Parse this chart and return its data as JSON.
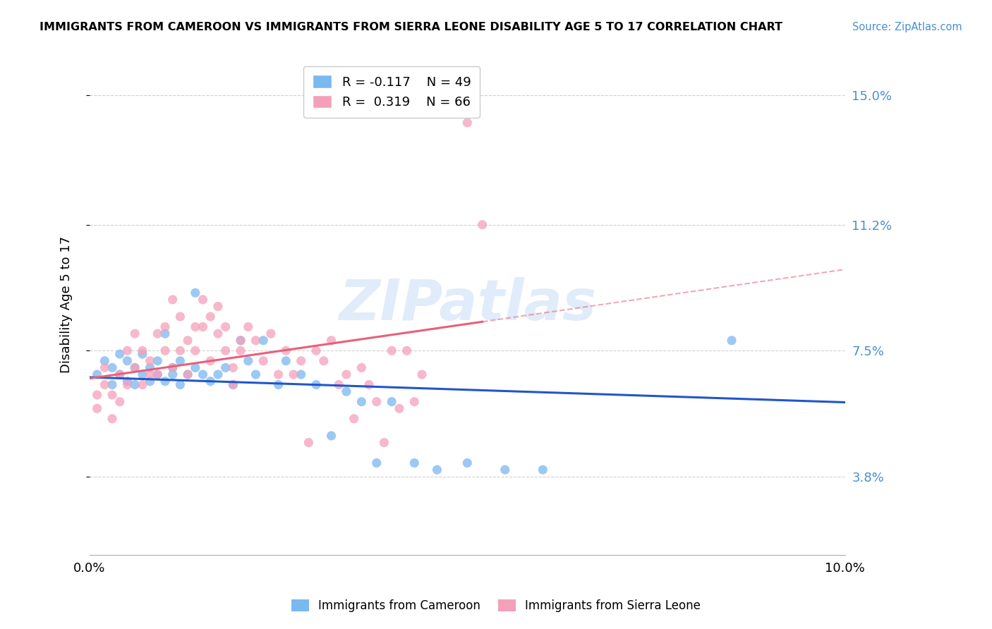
{
  "title": "IMMIGRANTS FROM CAMEROON VS IMMIGRANTS FROM SIERRA LEONE DISABILITY AGE 5 TO 17 CORRELATION CHART",
  "source": "Source: ZipAtlas.com",
  "ylabel": "Disability Age 5 to 17",
  "yticks": [
    0.038,
    0.075,
    0.112,
    0.15
  ],
  "ytick_labels": [
    "3.8%",
    "7.5%",
    "11.2%",
    "15.0%"
  ],
  "xticks": [
    0.0,
    0.02,
    0.04,
    0.06,
    0.08,
    0.1
  ],
  "xtick_labels": [
    "0.0%",
    "",
    "",
    "",
    "",
    "10.0%"
  ],
  "xmin": 0.0,
  "xmax": 0.1,
  "ymin": 0.015,
  "ymax": 0.162,
  "legend_blue_r": "-0.117",
  "legend_blue_n": "49",
  "legend_pink_r": "0.319",
  "legend_pink_n": "66",
  "blue_color": "#7ab8f0",
  "pink_color": "#f5a0ba",
  "line_blue": "#2255cc",
  "line_pink": "#e8607a",
  "watermark": "ZIPatlas",
  "cameroon_x": [
    0.001,
    0.002,
    0.003,
    0.003,
    0.004,
    0.004,
    0.005,
    0.005,
    0.006,
    0.006,
    0.007,
    0.007,
    0.008,
    0.008,
    0.009,
    0.009,
    0.01,
    0.01,
    0.011,
    0.011,
    0.012,
    0.012,
    0.013,
    0.014,
    0.014,
    0.015,
    0.016,
    0.017,
    0.018,
    0.019,
    0.02,
    0.021,
    0.022,
    0.023,
    0.025,
    0.026,
    0.028,
    0.03,
    0.032,
    0.034,
    0.036,
    0.038,
    0.04,
    0.043,
    0.046,
    0.05,
    0.055,
    0.06,
    0.085
  ],
  "cameroon_y": [
    0.068,
    0.072,
    0.065,
    0.07,
    0.068,
    0.074,
    0.066,
    0.072,
    0.065,
    0.07,
    0.068,
    0.074,
    0.066,
    0.07,
    0.068,
    0.072,
    0.08,
    0.066,
    0.068,
    0.07,
    0.072,
    0.065,
    0.068,
    0.092,
    0.07,
    0.068,
    0.066,
    0.068,
    0.07,
    0.065,
    0.078,
    0.072,
    0.068,
    0.078,
    0.065,
    0.072,
    0.068,
    0.065,
    0.05,
    0.063,
    0.06,
    0.042,
    0.06,
    0.042,
    0.04,
    0.042,
    0.04,
    0.04,
    0.078
  ],
  "sierraleone_x": [
    0.001,
    0.001,
    0.002,
    0.002,
    0.003,
    0.003,
    0.004,
    0.004,
    0.005,
    0.005,
    0.006,
    0.006,
    0.007,
    0.007,
    0.008,
    0.008,
    0.009,
    0.009,
    0.01,
    0.01,
    0.011,
    0.011,
    0.012,
    0.012,
    0.013,
    0.013,
    0.014,
    0.014,
    0.015,
    0.015,
    0.016,
    0.016,
    0.017,
    0.017,
    0.018,
    0.018,
    0.019,
    0.019,
    0.02,
    0.02,
    0.021,
    0.022,
    0.023,
    0.024,
    0.025,
    0.026,
    0.027,
    0.028,
    0.029,
    0.03,
    0.031,
    0.032,
    0.033,
    0.034,
    0.035,
    0.036,
    0.037,
    0.038,
    0.039,
    0.04,
    0.041,
    0.042,
    0.043,
    0.044,
    0.05,
    0.052
  ],
  "sierraleone_y": [
    0.062,
    0.058,
    0.07,
    0.065,
    0.062,
    0.055,
    0.068,
    0.06,
    0.075,
    0.065,
    0.07,
    0.08,
    0.075,
    0.065,
    0.068,
    0.072,
    0.08,
    0.068,
    0.075,
    0.082,
    0.09,
    0.07,
    0.085,
    0.075,
    0.078,
    0.068,
    0.082,
    0.075,
    0.09,
    0.082,
    0.085,
    0.072,
    0.08,
    0.088,
    0.075,
    0.082,
    0.065,
    0.07,
    0.075,
    0.078,
    0.082,
    0.078,
    0.072,
    0.08,
    0.068,
    0.075,
    0.068,
    0.072,
    0.048,
    0.075,
    0.072,
    0.078,
    0.065,
    0.068,
    0.055,
    0.07,
    0.065,
    0.06,
    0.048,
    0.075,
    0.058,
    0.075,
    0.06,
    0.068,
    0.142,
    0.112
  ]
}
